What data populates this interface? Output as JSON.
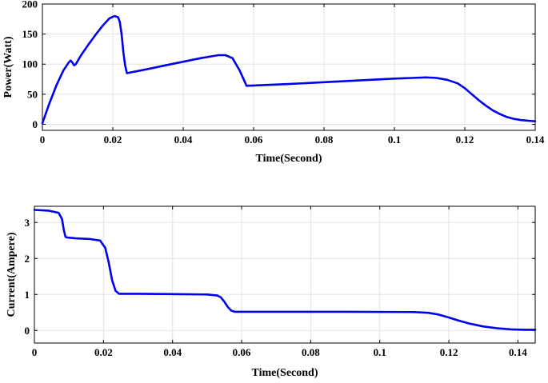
{
  "chart_data": [
    {
      "type": "line",
      "title": "",
      "xlabel": "Time(Second)",
      "ylabel": "Power(Watt)",
      "xlim": [
        0,
        0.14
      ],
      "ylim": [
        -10,
        200
      ],
      "xticks": [
        0,
        0.02,
        0.04,
        0.06,
        0.08,
        0.1,
        0.12,
        0.14
      ],
      "xtick_labels": [
        "0",
        "0.02",
        "0.04",
        "0.06",
        "0.08",
        "0.1",
        "0.12",
        "0.14"
      ],
      "yticks": [
        0,
        50,
        100,
        150,
        200
      ],
      "ytick_labels": [
        "0",
        "50",
        "100",
        "150",
        "200"
      ],
      "grid": true,
      "color": "#0000ee",
      "series": [
        {
          "x": [
            0,
            0.002,
            0.004,
            0.006,
            0.0075,
            0.008,
            0.0085,
            0.009,
            0.0095,
            0.011,
            0.013,
            0.015,
            0.017,
            0.019,
            0.0205,
            0.0215,
            0.022,
            0.0225,
            0.023,
            0.0235,
            0.024,
            0.03,
            0.035,
            0.04,
            0.045,
            0.05,
            0.052,
            0.054,
            0.056,
            0.058,
            0.07,
            0.08,
            0.09,
            0.1,
            0.105,
            0.109,
            0.112,
            0.115,
            0.118,
            0.12,
            0.122,
            0.124,
            0.126,
            0.128,
            0.13,
            0.132,
            0.134,
            0.136,
            0.138,
            0.14
          ],
          "y": [
            2,
            35,
            65,
            90,
            103,
            106,
            103,
            98,
            100,
            115,
            132,
            148,
            163,
            176,
            180,
            178,
            170,
            150,
            120,
            98,
            85,
            92,
            98,
            104,
            110,
            115,
            115,
            110,
            90,
            64,
            67,
            70,
            73,
            76,
            77,
            78,
            77,
            74,
            68,
            60,
            50,
            40,
            31,
            23,
            17,
            12,
            9,
            7,
            6,
            5
          ]
        }
      ]
    },
    {
      "type": "line",
      "title": "",
      "xlabel": "Time(Second)",
      "ylabel": "Current(Ampere)",
      "xlim": [
        0,
        0.145
      ],
      "ylim": [
        -0.35,
        3.45
      ],
      "xticks": [
        0,
        0.02,
        0.04,
        0.06,
        0.08,
        0.1,
        0.12,
        0.14
      ],
      "xtick_labels": [
        "0",
        "0.02",
        "0.04",
        "0.06",
        "0.08",
        "0.1",
        "0.12",
        "0.14"
      ],
      "yticks": [
        0,
        1,
        2,
        3
      ],
      "ytick_labels": [
        "0",
        "1",
        "2",
        "3"
      ],
      "grid": true,
      "color": "#0000ee",
      "series": [
        {
          "x": [
            0,
            0.004,
            0.007,
            0.008,
            0.0085,
            0.009,
            0.0095,
            0.012,
            0.016,
            0.019,
            0.0205,
            0.0215,
            0.0225,
            0.0235,
            0.0245,
            0.03,
            0.04,
            0.05,
            0.053,
            0.054,
            0.055,
            0.056,
            0.057,
            0.058,
            0.07,
            0.09,
            0.11,
            0.114,
            0.117,
            0.12,
            0.123,
            0.126,
            0.13,
            0.134,
            0.138,
            0.142,
            0.145
          ],
          "y": [
            3.35,
            3.33,
            3.27,
            3.1,
            2.8,
            2.6,
            2.58,
            2.56,
            2.54,
            2.5,
            2.3,
            1.9,
            1.4,
            1.1,
            1.02,
            1.02,
            1.01,
            1.0,
            0.97,
            0.92,
            0.8,
            0.65,
            0.55,
            0.52,
            0.52,
            0.52,
            0.51,
            0.49,
            0.44,
            0.36,
            0.27,
            0.19,
            0.11,
            0.06,
            0.03,
            0.02,
            0.02
          ]
        }
      ]
    }
  ]
}
